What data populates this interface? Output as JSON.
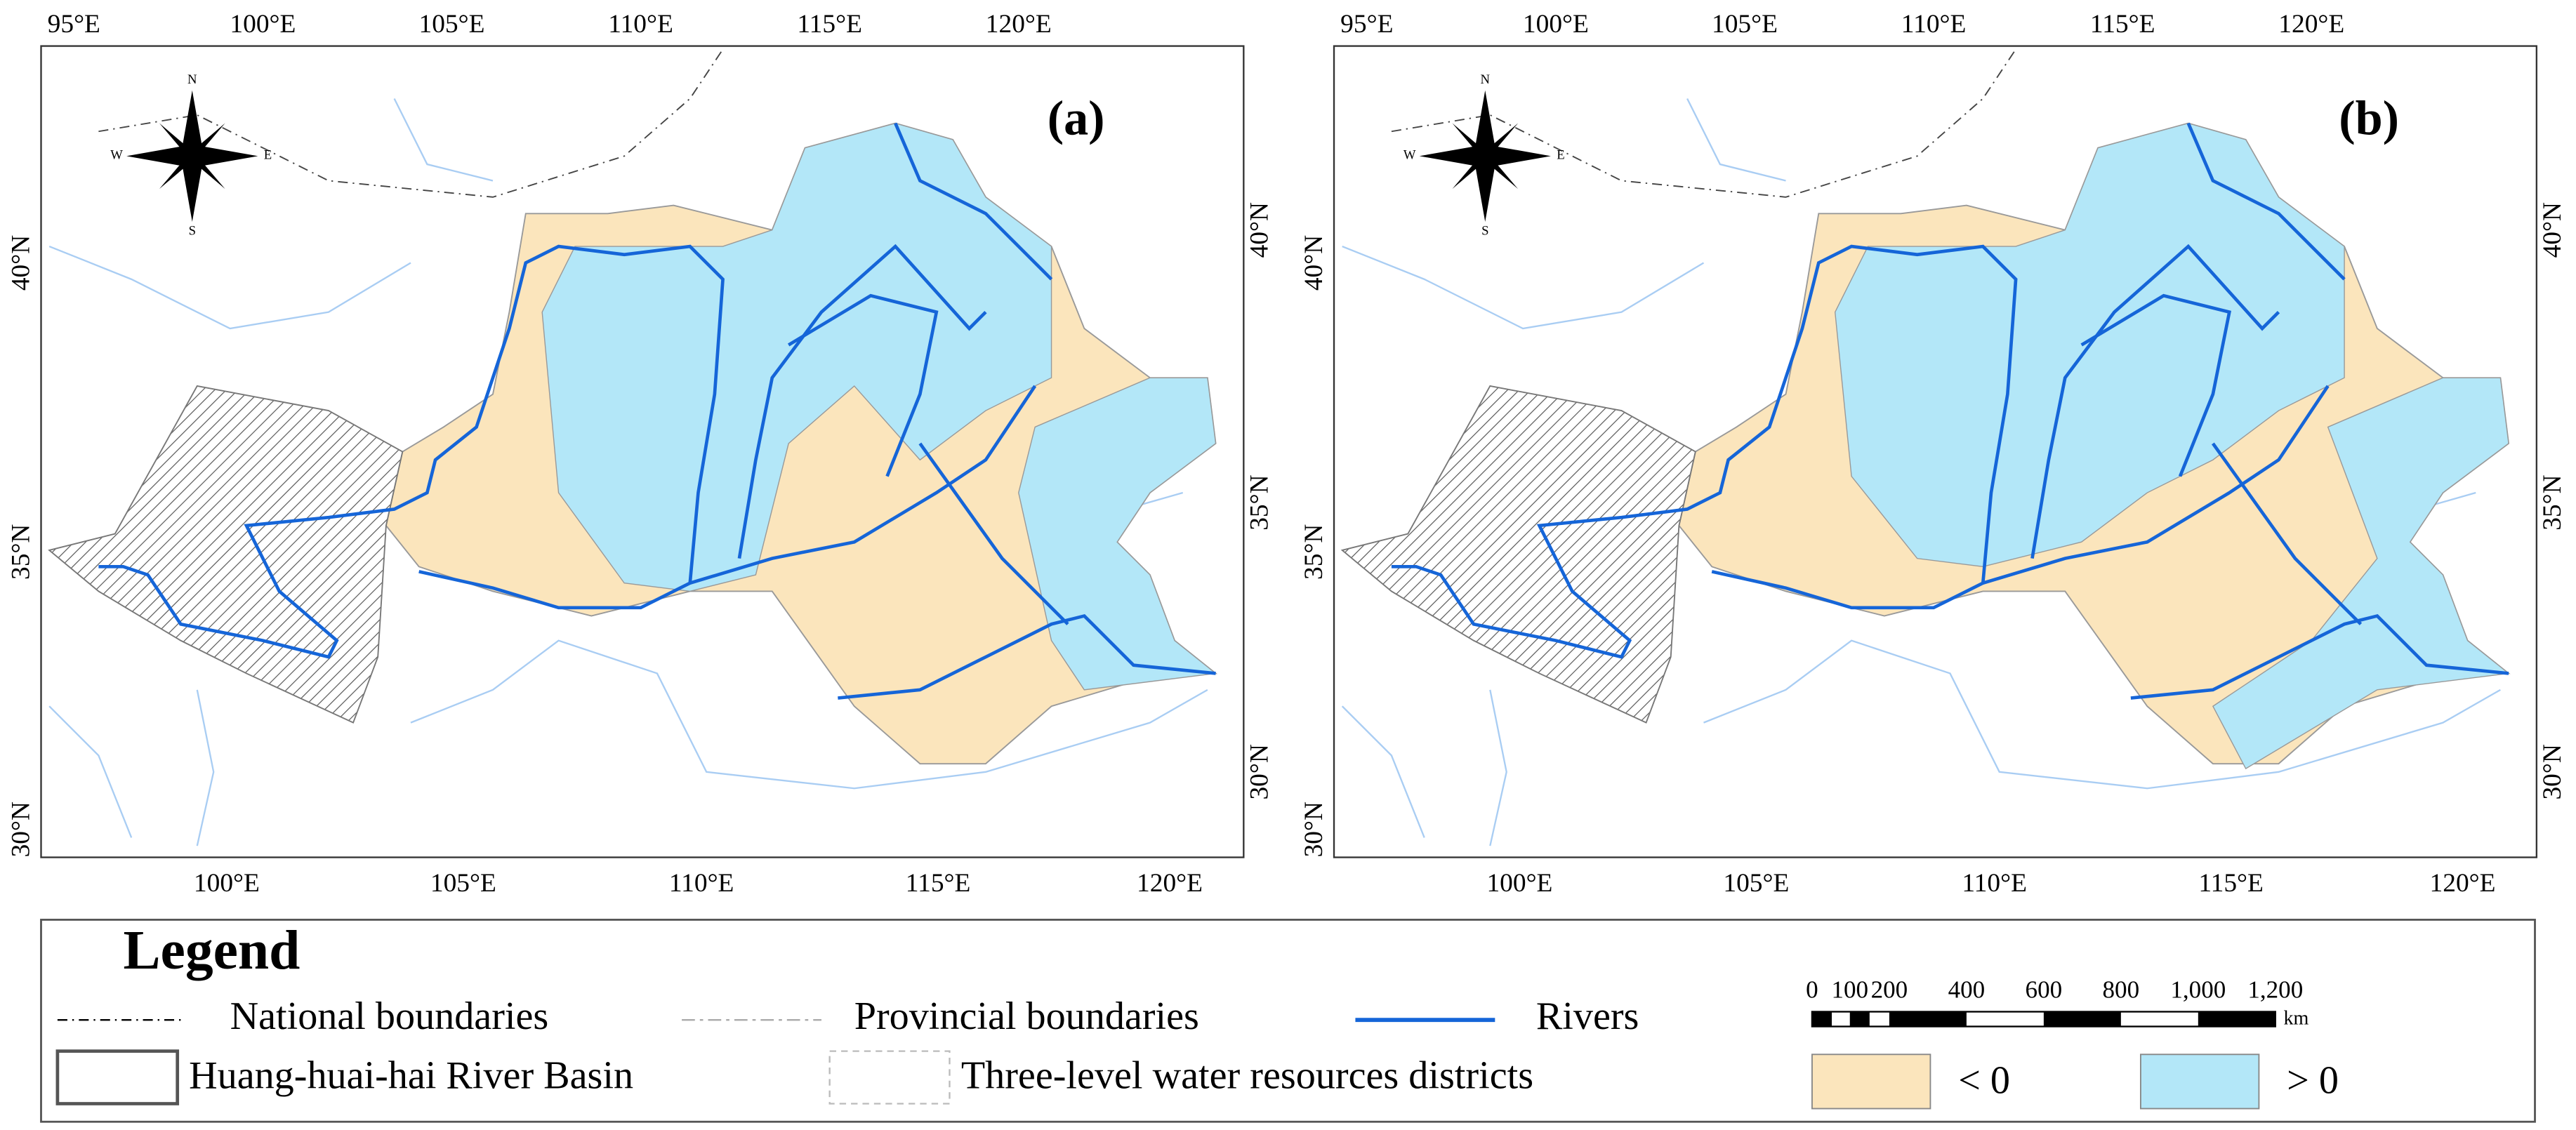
{
  "panels": [
    {
      "label": "(a)"
    },
    {
      "label": "(b)"
    }
  ],
  "top_lon_labels": [
    "95°E",
    "100°E",
    "105°E",
    "110°E",
    "115°E",
    "120°E"
  ],
  "bottom_lon_labels": [
    "100°E",
    "105°E",
    "110°E",
    "115°E",
    "120°E"
  ],
  "left_lat_labels": [
    "40°N",
    "35°N",
    "30°N"
  ],
  "right_lat_labels": [
    "40°N",
    "35°N",
    "30°N"
  ],
  "compass": {
    "n": "N",
    "s": "S",
    "w": "W",
    "e": "E"
  },
  "legend": {
    "title": "Legend",
    "items": [
      "National boundaries",
      "Provincial boundaries",
      "Rivers",
      "Huang-huai-hai River Basin",
      "Three-level water resources districts",
      "< 0",
      "> 0"
    ]
  },
  "scale_bar": {
    "labels": [
      "0",
      "100",
      "200",
      "400",
      "600",
      "800",
      "1,000",
      "1,200"
    ],
    "unit": "km"
  }
}
